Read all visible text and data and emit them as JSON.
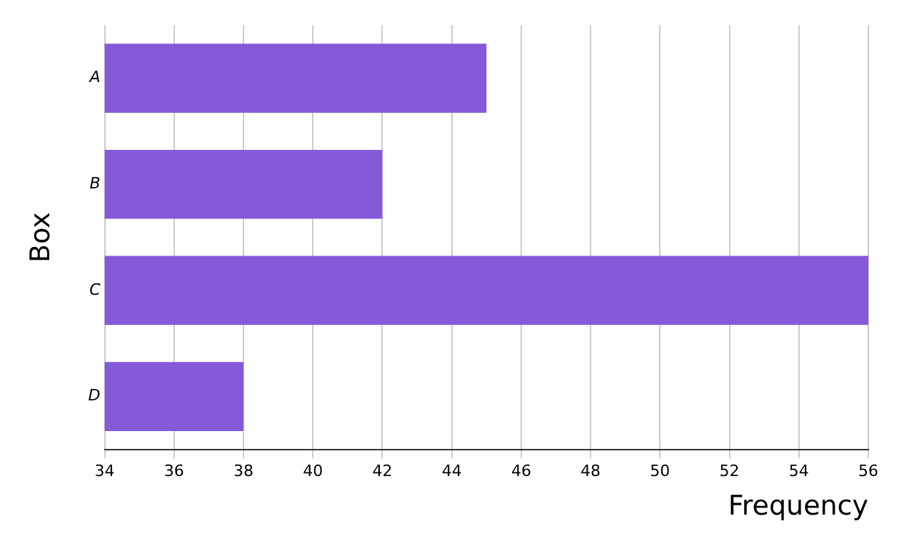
{
  "chart_data": {
    "type": "bar",
    "orientation": "horizontal",
    "xlabel": "Frequency",
    "ylabel": "Box",
    "categories": [
      "A",
      "B",
      "C",
      "D"
    ],
    "series": [
      {
        "color": "#845ad9",
        "values": [
          45,
          42,
          56,
          38
        ]
      }
    ],
    "xlim": [
      34,
      56
    ],
    "xticks": [
      34,
      36,
      38,
      40,
      42,
      44,
      46,
      48,
      50,
      52,
      54,
      56
    ],
    "grid": "x",
    "legend": false
  }
}
